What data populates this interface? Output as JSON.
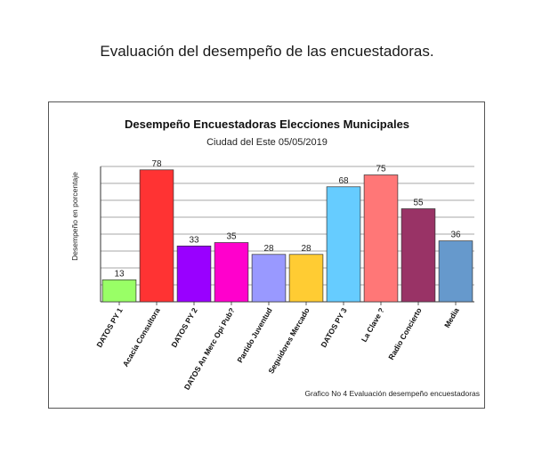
{
  "page_heading": "Evaluación del desempeño de las encuestadoras.",
  "chart_data": {
    "type": "bar",
    "title": "Desempeño Encuestadoras Elecciones Municipales",
    "subtitle": "Ciudad del Este  05/05/2019",
    "xlabel": "",
    "ylabel": "Desempeño en porcentaje",
    "ylim": [
      0,
      80
    ],
    "grid": true,
    "categories": [
      "DATOS PY 1",
      "Acacia Consultora",
      "DATOS PY 2",
      "DATOS An Merc Opi Pub?",
      "Partido Juventud",
      "Seguidores Mercado",
      "DATOS PY 3",
      "La Clave ?",
      "Radio Concierto",
      "Media"
    ],
    "values": [
      13,
      78,
      33,
      35,
      28,
      28,
      68,
      75,
      55,
      36
    ],
    "colors": [
      "#99ff66",
      "#ff3333",
      "#9900ff",
      "#ff00cc",
      "#9999ff",
      "#ffcc33",
      "#66ccff",
      "#ff7777",
      "#993366",
      "#6699cc"
    ],
    "caption": "Grafico No 4 Evaluación desempeño encuestadoras"
  }
}
